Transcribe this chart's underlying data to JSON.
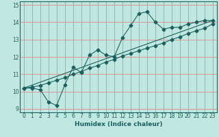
{
  "title": "",
  "xlabel": "Humidex (Indice chaleur)",
  "ylabel": "",
  "bg_color": "#c0e8e0",
  "grid_color": "#e08888",
  "line_color": "#1a6060",
  "markersize": 2.5,
  "xlim": [
    -0.5,
    23.5
  ],
  "ylim": [
    8.8,
    15.2
  ],
  "xticks": [
    0,
    1,
    2,
    3,
    4,
    5,
    6,
    7,
    8,
    9,
    10,
    11,
    12,
    13,
    14,
    15,
    16,
    17,
    18,
    19,
    20,
    21,
    22,
    23
  ],
  "yticks": [
    9,
    10,
    11,
    12,
    13,
    14,
    15
  ],
  "line1_x": [
    0,
    1,
    2,
    3,
    4,
    5,
    6,
    7,
    8,
    9,
    10,
    11,
    12,
    13,
    14,
    15,
    16,
    17,
    18,
    19,
    20,
    21,
    22,
    23
  ],
  "line1_y": [
    10.2,
    10.2,
    10.1,
    9.4,
    9.2,
    10.4,
    11.4,
    11.1,
    12.1,
    12.4,
    12.1,
    12.0,
    13.1,
    13.8,
    14.5,
    14.6,
    14.0,
    13.6,
    13.7,
    13.7,
    13.9,
    14.0,
    14.1,
    14.1
  ],
  "line2_x": [
    0,
    23
  ],
  "line2_y": [
    10.2,
    14.1
  ],
  "line3_x": [
    0,
    1,
    2,
    3,
    4,
    5,
    6,
    7,
    8,
    9,
    10,
    11,
    12,
    13,
    14,
    15,
    16,
    17,
    18,
    19,
    20,
    21,
    22,
    23
  ],
  "line3_y": [
    10.2,
    10.25,
    10.35,
    10.5,
    10.65,
    10.8,
    11.0,
    11.15,
    11.35,
    11.5,
    11.7,
    11.85,
    12.05,
    12.2,
    12.35,
    12.5,
    12.65,
    12.8,
    13.0,
    13.15,
    13.35,
    13.5,
    13.65,
    13.9
  ]
}
